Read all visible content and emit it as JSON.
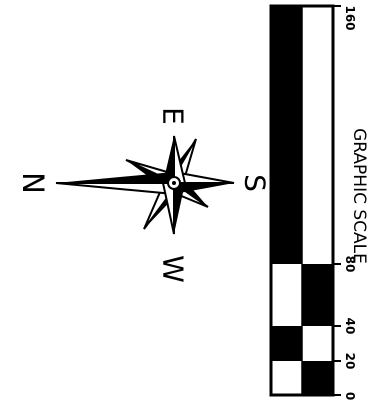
{
  "compass": {
    "north": "N",
    "south": "S",
    "east": "E",
    "west": "W"
  },
  "scale": {
    "title": "GRAPHIC SCALE",
    "tick_labels": [
      "0",
      "20",
      "40",
      "80",
      "160"
    ]
  },
  "colors": {
    "ink": "#000000",
    "paper": "#ffffff"
  }
}
